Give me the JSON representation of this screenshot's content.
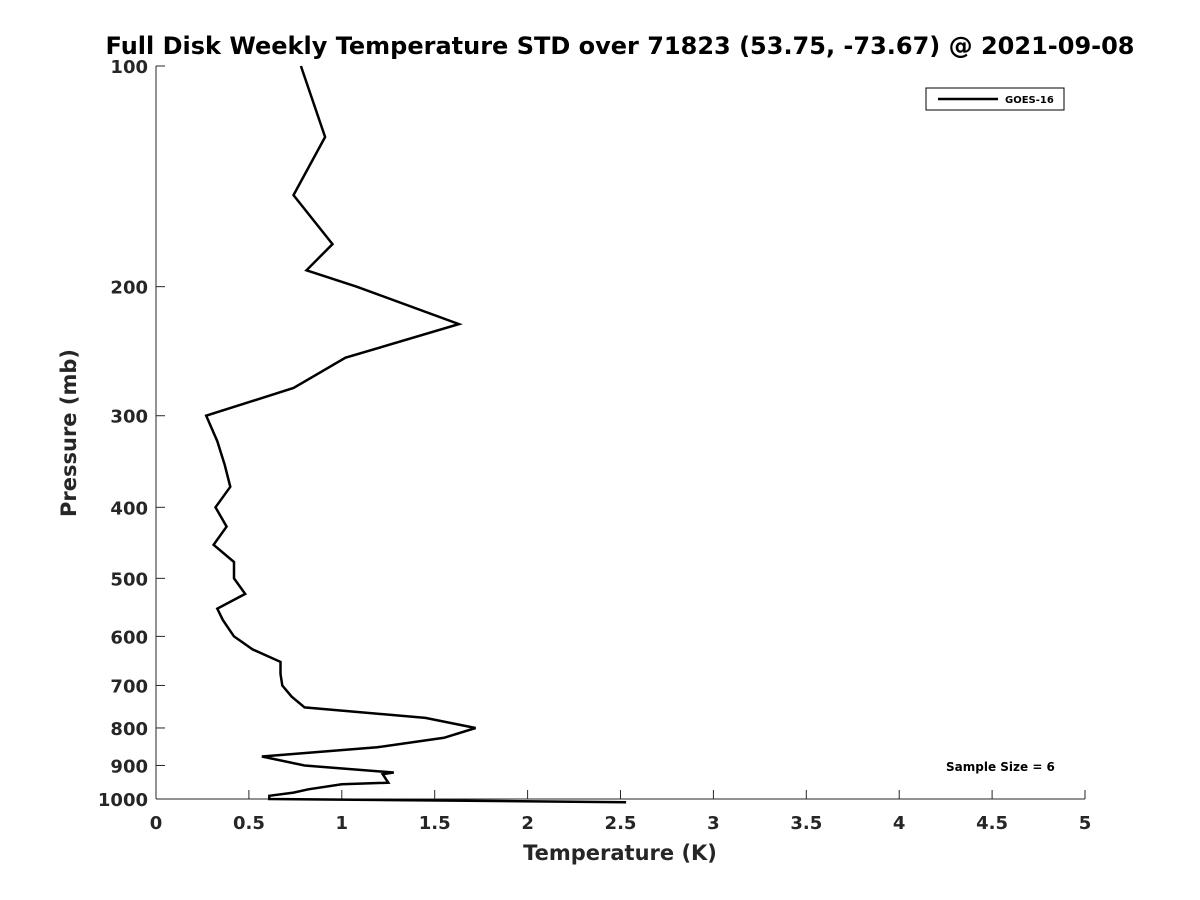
{
  "chart_data": {
    "type": "line",
    "title": "Full Disk Weekly Temperature STD over 71823 (53.75, -73.67) @ 2021-09-08",
    "xlabel": "Temperature (K)",
    "ylabel": "Pressure (mb)",
    "xlim": [
      0,
      5
    ],
    "ylim": [
      100,
      1000
    ],
    "y_scale": "log",
    "y_reversed": true,
    "x_ticks": [
      "0",
      "0.5",
      "1",
      "1.5",
      "2",
      "2.5",
      "3",
      "3.5",
      "4",
      "4.5",
      "5"
    ],
    "x_tick_values": [
      0,
      0.5,
      1,
      1.5,
      2,
      2.5,
      3,
      3.5,
      4,
      4.5,
      5
    ],
    "y_ticks": [
      "100",
      "200",
      "300",
      "400",
      "500",
      "600",
      "700",
      "800",
      "900",
      "1000"
    ],
    "y_tick_values": [
      100,
      200,
      300,
      400,
      500,
      600,
      700,
      800,
      900,
      1000
    ],
    "grid": false,
    "legend_position": "top-right",
    "annotation": "Sample Size = 6",
    "line_color": "#000000",
    "series": [
      {
        "name": "GOES-16",
        "points": [
          [
            0.78,
            100
          ],
          [
            0.91,
            125
          ],
          [
            0.74,
            150
          ],
          [
            0.95,
            175
          ],
          [
            0.81,
            190
          ],
          [
            1.08,
            200
          ],
          [
            1.63,
            225
          ],
          [
            1.02,
            250
          ],
          [
            0.74,
            275
          ],
          [
            0.27,
            300
          ],
          [
            0.33,
            325
          ],
          [
            0.37,
            350
          ],
          [
            0.4,
            375
          ],
          [
            0.32,
            400
          ],
          [
            0.38,
            425
          ],
          [
            0.31,
            450
          ],
          [
            0.42,
            475
          ],
          [
            0.42,
            500
          ],
          [
            0.48,
            525
          ],
          [
            0.33,
            550
          ],
          [
            0.36,
            570
          ],
          [
            0.42,
            600
          ],
          [
            0.52,
            625
          ],
          [
            0.67,
            650
          ],
          [
            0.67,
            675
          ],
          [
            0.68,
            700
          ],
          [
            0.73,
            725
          ],
          [
            0.8,
            750
          ],
          [
            1.45,
            775
          ],
          [
            1.72,
            800
          ],
          [
            1.55,
            825
          ],
          [
            1.19,
            850
          ],
          [
            0.57,
            875
          ],
          [
            0.8,
            900
          ],
          [
            1.28,
            920
          ],
          [
            1.22,
            925
          ],
          [
            1.25,
            950
          ],
          [
            1.0,
            955
          ],
          [
            0.82,
            970
          ],
          [
            0.74,
            980
          ],
          [
            0.61,
            990
          ],
          [
            0.61,
            995
          ],
          [
            0.61,
            1000
          ],
          [
            2.53,
            1010
          ]
        ]
      }
    ]
  }
}
